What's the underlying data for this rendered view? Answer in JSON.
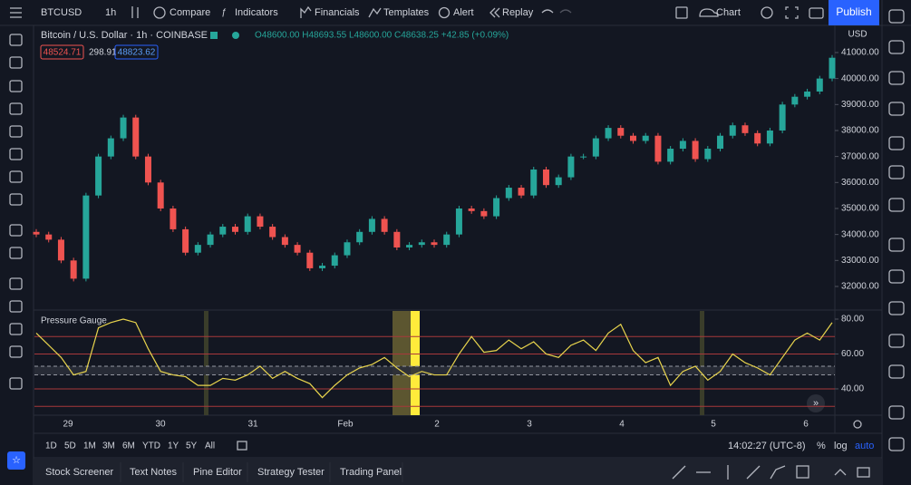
{
  "toolbar": {
    "symbol": "BTCUSD",
    "interval": "1h",
    "items": [
      "Compare",
      "Indicators",
      "Financials",
      "Templates",
      "Alert",
      "Replay"
    ],
    "layout": "Chart",
    "publish": "Publish"
  },
  "legend": {
    "title": "Bitcoin / U.S. Dollar · 1h · COINBASE",
    "ohlc": "O48600.00 H48693.55 L48600.00 C48638.25 +42.85 (+0.09%)",
    "bid": "48524.71",
    "spread": "298.91",
    "ask": "48823.62"
  },
  "price_axis": {
    "currency": "USD",
    "ylim": [
      31093,
      42045
    ],
    "yticks": [
      {
        "value": 32000,
        "label": "32000.00"
      },
      {
        "value": 33000,
        "label": "33000.00"
      },
      {
        "value": 34000,
        "label": "34000.00"
      },
      {
        "value": 35000,
        "label": "35000.00"
      },
      {
        "value": 36000,
        "label": "36000.00"
      },
      {
        "value": 37000,
        "label": "37000.00"
      },
      {
        "value": 38000,
        "label": "38000.00"
      },
      {
        "value": 39000,
        "label": "39000.00"
      },
      {
        "value": 40000,
        "label": "40000.00"
      },
      {
        "value": 41000,
        "label": "41000.00"
      }
    ]
  },
  "candles": {
    "first_open": 34100,
    "closes": [
      34000,
      33800,
      33000,
      32300,
      35500,
      37000,
      37700,
      38500,
      37000,
      36000,
      35000,
      34200,
      33300,
      33600,
      34000,
      34300,
      34100,
      34700,
      34300,
      33900,
      33600,
      33300,
      32700,
      32800,
      33200,
      33700,
      34100,
      34600,
      34100,
      33500,
      33600,
      33700,
      33600,
      34000,
      35000,
      34900,
      34700,
      35400,
      35800,
      35500,
      36500,
      35900,
      36200,
      37000,
      37000,
      37700,
      38100,
      37800,
      37600,
      37800,
      36800,
      37300,
      37600,
      36900,
      37300,
      37800,
      38200,
      37900,
      37500,
      38000,
      39000,
      39300,
      39500,
      40000,
      40800
    ]
  },
  "indicator": {
    "title": "Pressure Gauge",
    "ylim": [
      24.9,
      85.2
    ],
    "yticks": [
      {
        "value": 80,
        "label": "80.00"
      },
      {
        "value": 60,
        "label": "60.00"
      },
      {
        "value": 40,
        "label": "40.00"
      }
    ],
    "levels": [
      70,
      60,
      40,
      30
    ],
    "band": [
      53,
      48
    ],
    "values": [
      72,
      65,
      58,
      48,
      50,
      75,
      78,
      80,
      78,
      63,
      50,
      48,
      47,
      42,
      42,
      46,
      45,
      48,
      53,
      46,
      50,
      46,
      43,
      35,
      42,
      48,
      52,
      54,
      58,
      52,
      47,
      50,
      48,
      48,
      60,
      70,
      61,
      62,
      68,
      63,
      67,
      60,
      58,
      65,
      68,
      62,
      72,
      77,
      62,
      55,
      58,
      42,
      50,
      53,
      45,
      50,
      60,
      55,
      52,
      48,
      58,
      68,
      72,
      68,
      78
    ]
  },
  "time_axis": [
    "29",
    "30",
    "31",
    "Feb",
    "2",
    "3",
    "4",
    "5",
    "6"
  ],
  "ranges": [
    "1D",
    "5D",
    "1M",
    "3M",
    "6M",
    "YTD",
    "1Y",
    "5Y",
    "All"
  ],
  "clock": "14:02:27 (UTC-8)",
  "scale_options": [
    "%",
    "log",
    "auto"
  ],
  "tabs": [
    "Stock Screener",
    "Text Notes",
    "Pine Editor",
    "Strategy Tester",
    "Trading Panel"
  ]
}
